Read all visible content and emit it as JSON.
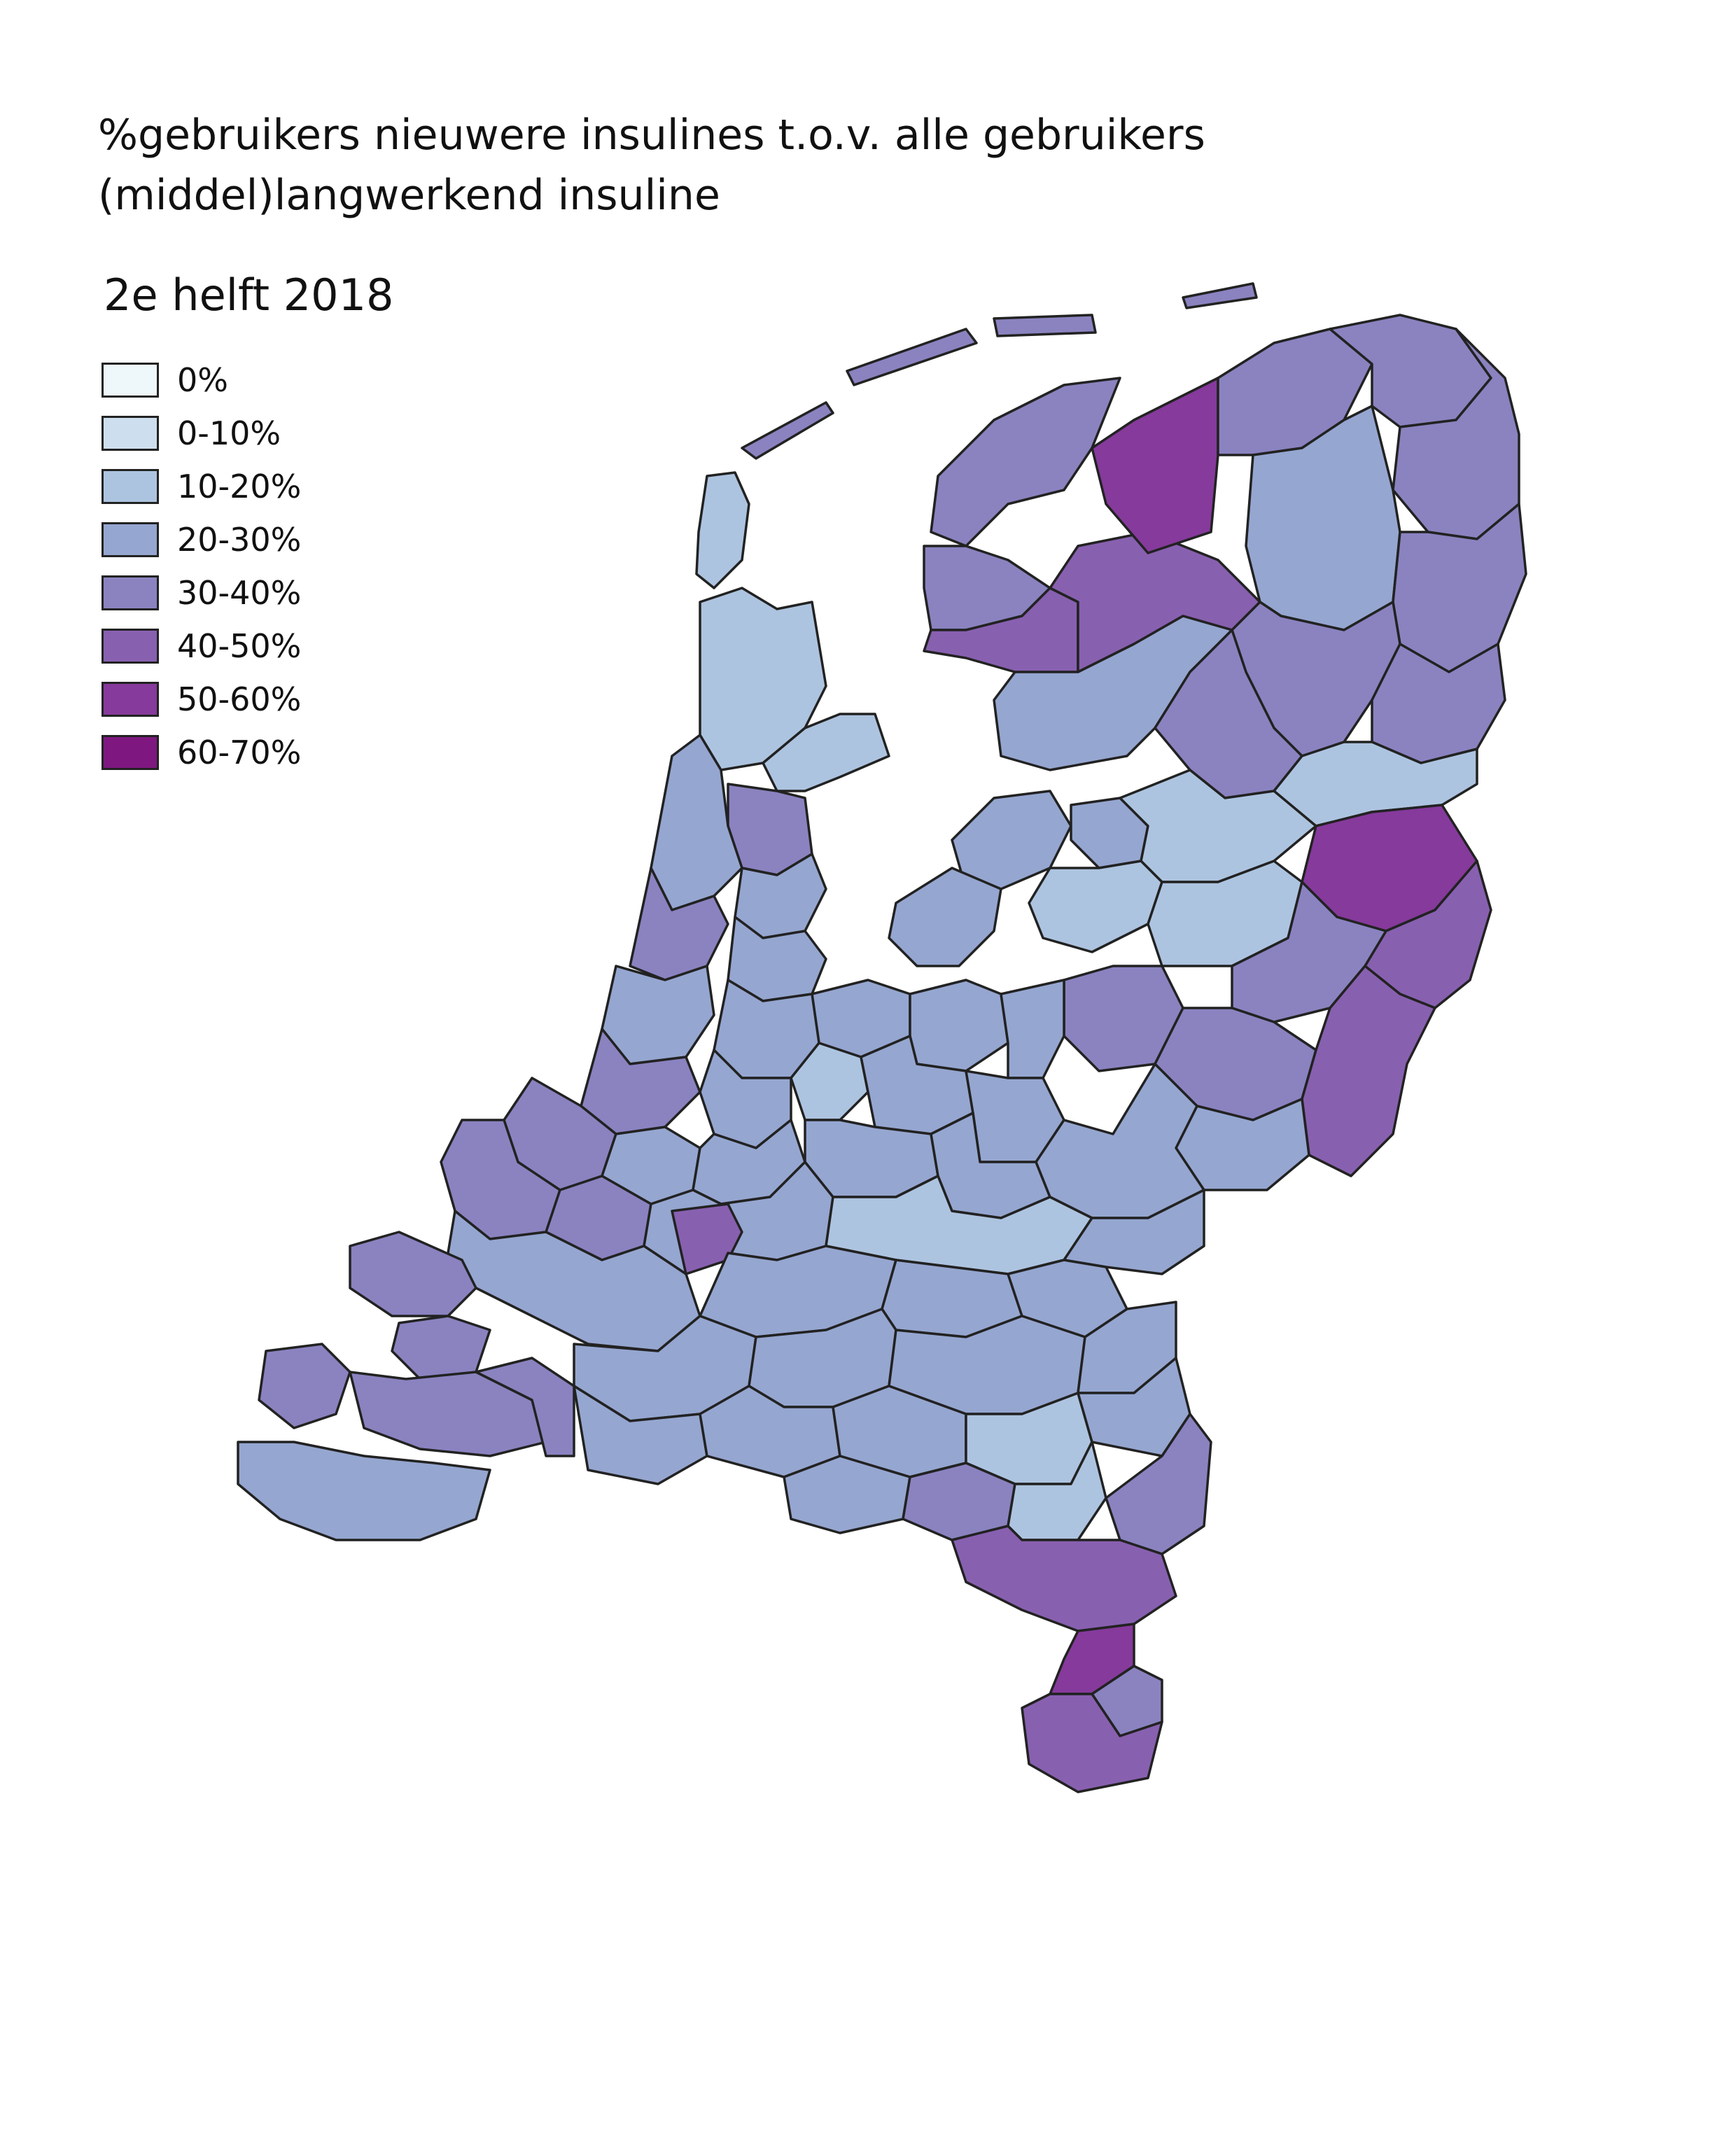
{
  "title": "%gebruikers nieuwere insulines t.o.v. alle gebruikers (middel)langwerkend insuline",
  "period": "2e helft 2018",
  "legend": [
    {
      "label": "0%",
      "color": "#eef7f9"
    },
    {
      "label": "0-10%",
      "color": "#cddfee"
    },
    {
      "label": "10-20%",
      "color": "#adc4e0"
    },
    {
      "label": "20-30%",
      "color": "#95a6d0"
    },
    {
      "label": "30-40%",
      "color": "#8a83c0"
    },
    {
      "label": "40-50%",
      "color": "#8860b0"
    },
    {
      "label": "50-60%",
      "color": "#863a9c"
    },
    {
      "label": "60-70%",
      "color": "#7e1880"
    }
  ]
}
